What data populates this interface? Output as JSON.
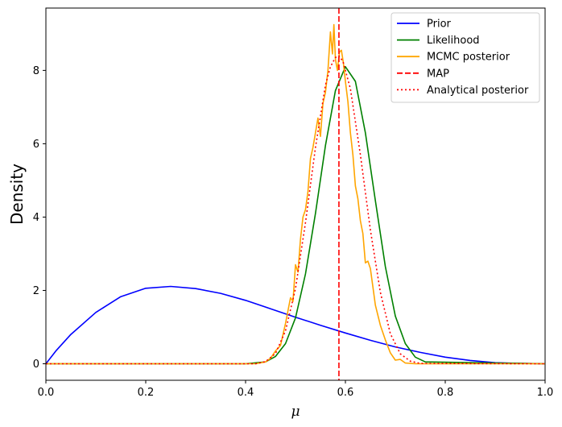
{
  "chart_data": {
    "type": "line",
    "xlabel": "μ",
    "ylabel": "Density",
    "xlim": [
      0.0,
      1.0
    ],
    "ylim": [
      -0.45,
      9.7
    ],
    "xticks": [
      0.0,
      0.2,
      0.4,
      0.6,
      0.8,
      1.0
    ],
    "xtick_labels": [
      "0.0",
      "0.2",
      "0.4",
      "0.6",
      "0.8",
      "1.0"
    ],
    "yticks": [
      0,
      2,
      4,
      6,
      8
    ],
    "ytick_labels": [
      "0",
      "2",
      "4",
      "6",
      "8"
    ],
    "grid": false,
    "legend_position": "top-right",
    "series": [
      {
        "name": "Prior",
        "color": "#0000ff",
        "style": "solid",
        "x": [
          0.0,
          0.02,
          0.05,
          0.1,
          0.15,
          0.2,
          0.25,
          0.3,
          0.35,
          0.4,
          0.45,
          0.5,
          0.55,
          0.6,
          0.65,
          0.7,
          0.75,
          0.8,
          0.85,
          0.9,
          0.95,
          1.0
        ],
        "y": [
          0.0,
          0.35,
          0.8,
          1.4,
          1.83,
          2.06,
          2.11,
          2.05,
          1.92,
          1.73,
          1.5,
          1.27,
          1.05,
          0.84,
          0.64,
          0.46,
          0.31,
          0.18,
          0.09,
          0.03,
          0.01,
          0.0
        ]
      },
      {
        "name": "Likelihood",
        "color": "#008000",
        "style": "solid",
        "x": [
          0.0,
          0.4,
          0.44,
          0.46,
          0.48,
          0.5,
          0.52,
          0.54,
          0.56,
          0.58,
          0.6,
          0.62,
          0.64,
          0.66,
          0.68,
          0.7,
          0.72,
          0.74,
          0.76,
          1.0
        ],
        "y": [
          0.0,
          0.0,
          0.05,
          0.2,
          0.55,
          1.25,
          2.45,
          4.1,
          5.95,
          7.45,
          8.1,
          7.7,
          6.3,
          4.45,
          2.65,
          1.3,
          0.55,
          0.18,
          0.05,
          0.0
        ]
      },
      {
        "name": "MCMC posterior",
        "color": "#ffa500",
        "style": "solid",
        "x": [
          0.0,
          0.42,
          0.44,
          0.45,
          0.46,
          0.47,
          0.48,
          0.49,
          0.495,
          0.5,
          0.505,
          0.51,
          0.515,
          0.52,
          0.525,
          0.53,
          0.535,
          0.54,
          0.545,
          0.548,
          0.55,
          0.555,
          0.56,
          0.565,
          0.57,
          0.574,
          0.577,
          0.58,
          0.584,
          0.588,
          0.592,
          0.596,
          0.6,
          0.605,
          0.61,
          0.615,
          0.62,
          0.625,
          0.63,
          0.635,
          0.64,
          0.645,
          0.65,
          0.655,
          0.66,
          0.67,
          0.68,
          0.69,
          0.7,
          0.71,
          0.72,
          0.74,
          0.75,
          1.0
        ],
        "y": [
          0.0,
          0.0,
          0.05,
          0.15,
          0.35,
          0.5,
          1.1,
          1.8,
          1.7,
          2.7,
          2.5,
          3.4,
          4.0,
          4.2,
          4.7,
          5.6,
          5.9,
          6.3,
          6.7,
          6.4,
          6.2,
          7.1,
          7.4,
          8.0,
          9.05,
          8.45,
          9.25,
          8.3,
          8.0,
          8.5,
          8.55,
          8.2,
          7.7,
          7.15,
          6.3,
          5.7,
          4.85,
          4.5,
          3.9,
          3.55,
          2.75,
          2.8,
          2.6,
          2.1,
          1.6,
          1.05,
          0.65,
          0.3,
          0.1,
          0.12,
          0.02,
          0.0,
          0.0,
          0.0
        ]
      },
      {
        "name": "MAP",
        "color": "#ff0000",
        "style": "dashed",
        "vline_x": 0.587
      },
      {
        "name": "Analytical posterior",
        "color": "#ff0000",
        "style": "dotted",
        "x": [
          0.0,
          0.42,
          0.44,
          0.46,
          0.48,
          0.5,
          0.52,
          0.54,
          0.56,
          0.57,
          0.58,
          0.587,
          0.595,
          0.61,
          0.63,
          0.65,
          0.67,
          0.69,
          0.71,
          0.73,
          0.75,
          1.0
        ],
        "y": [
          0.0,
          0.0,
          0.06,
          0.28,
          0.9,
          2.05,
          3.85,
          5.9,
          7.6,
          8.1,
          8.35,
          8.4,
          8.25,
          7.5,
          5.7,
          3.65,
          1.95,
          0.82,
          0.27,
          0.07,
          0.01,
          0.0
        ]
      }
    ]
  }
}
